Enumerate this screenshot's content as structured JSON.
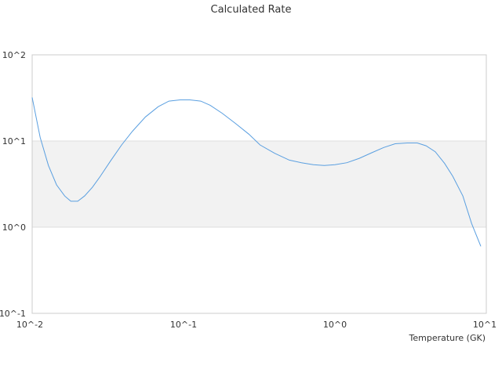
{
  "chart_data": {
    "type": "line",
    "title": "Calculated Rate",
    "xlabel": "Temperature (GK)",
    "ylabel": "",
    "x_scale": "log",
    "y_scale": "log",
    "xlim": [
      0.01,
      10
    ],
    "ylim": [
      0.1,
      100
    ],
    "x_ticks": [
      0.01,
      0.1,
      1,
      10
    ],
    "x_tick_labels": [
      "10^-2",
      "10^-1",
      "10^0",
      "10^1"
    ],
    "y_ticks": [
      0.1,
      1,
      10,
      100
    ],
    "y_tick_labels": [
      "10^-1",
      "10^0",
      "10^1",
      "10^2"
    ],
    "grid": true,
    "band_fill": "#f2f2f2",
    "legend": "none",
    "colors": {
      "line": "#5a9fe0",
      "grid": "#dddddd",
      "axis": "#cccccc",
      "text": "#333333"
    },
    "series": [
      {
        "x": [
          0.01,
          0.0113,
          0.0128,
          0.0145,
          0.0164,
          0.018,
          0.02,
          0.0222,
          0.025,
          0.0282,
          0.033,
          0.039,
          0.046,
          0.056,
          0.068,
          0.08,
          0.095,
          0.11,
          0.13,
          0.15,
          0.18,
          0.22,
          0.27,
          0.32,
          0.4,
          0.5,
          0.6,
          0.72,
          0.85,
          1.0,
          1.2,
          1.45,
          1.75,
          2.1,
          2.5,
          3.0,
          3.5,
          4.0,
          4.6,
          5.3,
          6.0,
          7.0,
          8.0,
          9.2
        ],
        "values": [
          32,
          11,
          5.2,
          3.1,
          2.3,
          2.0,
          2.0,
          2.3,
          2.9,
          3.9,
          5.9,
          9.0,
          13.0,
          19.0,
          25.0,
          29.0,
          30.0,
          30.0,
          29.0,
          26.0,
          21.0,
          16.0,
          12.0,
          9.0,
          7.2,
          6.0,
          5.6,
          5.3,
          5.2,
          5.3,
          5.6,
          6.3,
          7.3,
          8.4,
          9.3,
          9.5,
          9.5,
          8.8,
          7.5,
          5.5,
          3.9,
          2.3,
          1.1,
          0.6
        ]
      }
    ]
  }
}
